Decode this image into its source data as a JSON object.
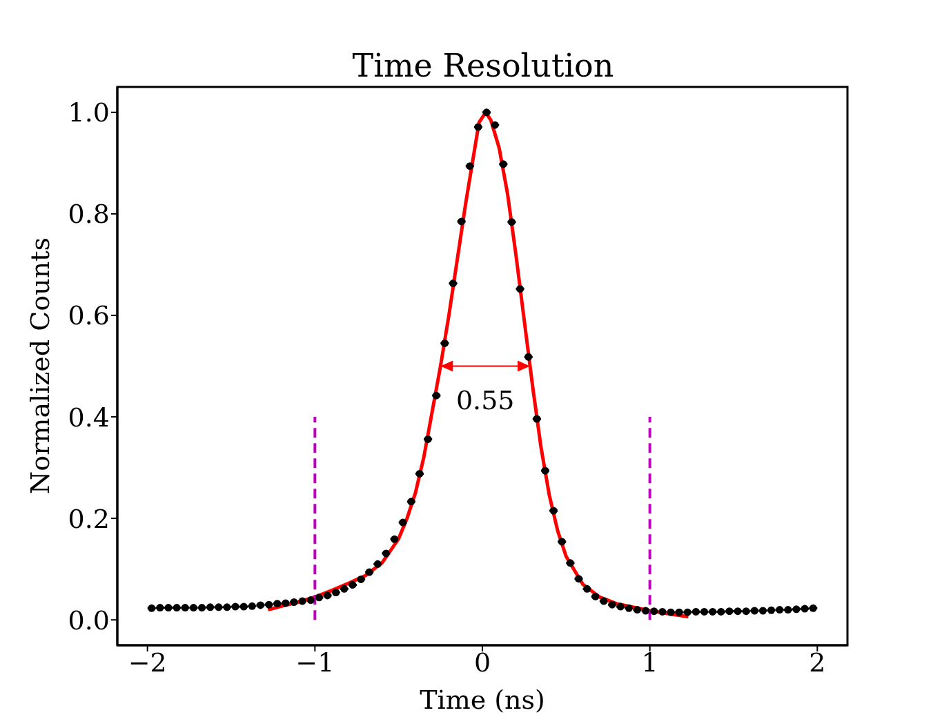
{
  "chart_data": {
    "type": "scatter",
    "title": "Time Resolution",
    "xlabel": "Time (ns)",
    "ylabel": "Normalized Counts",
    "xlim": [
      -2.18,
      2.18
    ],
    "ylim": [
      -0.05,
      1.05
    ],
    "xticks": [
      {
        "value": -2,
        "label": "−2"
      },
      {
        "value": -1,
        "label": "−1"
      },
      0,
      1,
      2
    ],
    "yticks": [
      {
        "value": 0,
        "label": "0.0"
      },
      0.2,
      0.4,
      0.6,
      0.8,
      {
        "value": 1,
        "label": "1.0"
      }
    ],
    "grid": false,
    "legend": false,
    "annotations": [
      "0.55"
    ],
    "series": [
      {
        "color": "#000000",
        "marker": "circle",
        "x": [
          -1.975,
          -1.925,
          -1.875,
          -1.825,
          -1.775,
          -1.725,
          -1.675,
          -1.625,
          -1.575,
          -1.525,
          -1.475,
          -1.425,
          -1.375,
          -1.325,
          -1.275,
          -1.225,
          -1.175,
          -1.125,
          -1.075,
          -1.025,
          -0.975,
          -0.925,
          -0.875,
          -0.825,
          -0.775,
          -0.725,
          -0.675,
          -0.625,
          -0.575,
          -0.525,
          -0.475,
          -0.425,
          -0.375,
          -0.325,
          -0.275,
          -0.225,
          -0.175,
          -0.125,
          -0.075,
          -0.025,
          0.025,
          0.075,
          0.125,
          0.175,
          0.225,
          0.275,
          0.325,
          0.375,
          0.425,
          0.475,
          0.525,
          0.575,
          0.625,
          0.675,
          0.725,
          0.775,
          0.825,
          0.875,
          0.925,
          0.975,
          1.025,
          1.075,
          1.125,
          1.175,
          1.225,
          1.275,
          1.325,
          1.375,
          1.425,
          1.475,
          1.525,
          1.575,
          1.625,
          1.675,
          1.725,
          1.775,
          1.825,
          1.875,
          1.925,
          1.975
        ],
        "values": [
          0.023,
          0.024,
          0.024,
          0.024,
          0.024,
          0.024,
          0.024,
          0.025,
          0.025,
          0.025,
          0.026,
          0.026,
          0.027,
          0.029,
          0.03,
          0.032,
          0.033,
          0.035,
          0.037,
          0.039,
          0.044,
          0.048,
          0.054,
          0.061,
          0.069,
          0.08,
          0.094,
          0.11,
          0.131,
          0.159,
          0.192,
          0.233,
          0.288,
          0.356,
          0.442,
          0.545,
          0.663,
          0.785,
          0.894,
          0.971,
          1.0,
          0.975,
          0.898,
          0.784,
          0.652,
          0.518,
          0.396,
          0.294,
          0.215,
          0.154,
          0.112,
          0.081,
          0.061,
          0.046,
          0.037,
          0.03,
          0.026,
          0.023,
          0.02,
          0.018,
          0.017,
          0.016,
          0.015,
          0.015,
          0.015,
          0.016,
          0.016,
          0.016,
          0.016,
          0.017,
          0.017,
          0.017,
          0.018,
          0.018,
          0.019,
          0.02,
          0.02,
          0.021,
          0.022,
          0.023
        ],
        "xerrors": [
          0.025,
          0.025,
          0.025,
          0.025,
          0.025,
          0.025,
          0.025,
          0.025,
          0.025,
          0.025,
          0.025,
          0.025,
          0.025,
          0.025,
          0.025,
          0.025,
          0.025,
          0.025,
          0.025,
          0.025,
          0.025,
          0.025,
          0.025,
          0.025,
          0.025,
          0.025,
          0.025,
          0.025,
          0.025,
          0.025,
          0.025,
          0.025,
          0.025,
          0.025,
          0.025,
          0.025,
          0.025,
          0.025,
          0.025,
          0.025,
          0.025,
          0.025,
          0.025,
          0.025,
          0.025,
          0.025,
          0.025,
          0.025,
          0.025,
          0.025,
          0.025,
          0.025,
          0.025,
          0.025,
          0.025,
          0.025,
          0.025,
          0.025,
          0.025,
          0.025,
          0.025,
          0.025,
          0.025,
          0.025,
          0.025,
          0.025,
          0.025,
          0.025,
          0.025,
          0.025,
          0.025,
          0.025,
          0.025,
          0.025,
          0.025,
          0.025,
          0.025,
          0.025,
          0.025,
          0.025
        ]
      },
      {
        "type": "line",
        "color": "#ff0000",
        "line_style": "solid",
        "x": [
          -1.28,
          -1.2,
          -1.1,
          -1.0,
          -0.9,
          -0.8,
          -0.7,
          -0.6,
          -0.5,
          -0.45,
          -0.4,
          -0.35,
          -0.3,
          -0.25,
          -0.2,
          -0.15,
          -0.1,
          -0.05,
          -0.02,
          0.02,
          0.05,
          0.1,
          0.15,
          0.2,
          0.25,
          0.3,
          0.35,
          0.4,
          0.45,
          0.5,
          0.6,
          0.7,
          0.8,
          1.0,
          1.23
        ],
        "values": [
          0.02,
          0.027,
          0.035,
          0.045,
          0.058,
          0.072,
          0.087,
          0.112,
          0.16,
          0.2,
          0.25,
          0.32,
          0.41,
          0.5,
          0.6,
          0.71,
          0.82,
          0.92,
          0.98,
          1.0,
          0.985,
          0.93,
          0.84,
          0.72,
          0.59,
          0.46,
          0.34,
          0.245,
          0.175,
          0.125,
          0.07,
          0.045,
          0.032,
          0.018,
          0.006
        ]
      },
      {
        "type": "line",
        "color": "#bf00bf",
        "line_style": "dashed",
        "x": [
          -1,
          -1
        ],
        "values": [
          0,
          0.4
        ]
      },
      {
        "type": "line",
        "color": "#bf00bf",
        "line_style": "dashed",
        "x": [
          1,
          1
        ],
        "values": [
          0,
          0.4
        ]
      }
    ]
  }
}
